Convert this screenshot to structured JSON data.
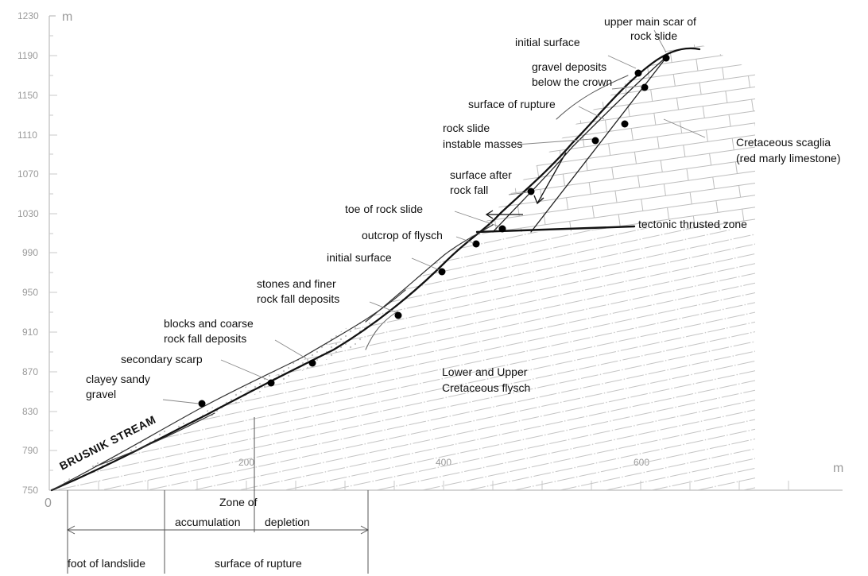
{
  "axes": {
    "y_unit": "m",
    "x_unit": "m",
    "y_ticks": [
      "1230",
      "1190",
      "1150",
      "1110",
      "1070",
      "1030",
      "990",
      "950",
      "910",
      "870",
      "830",
      "790",
      "750"
    ],
    "x_ticks": [
      "0",
      "200",
      "400",
      "600"
    ]
  },
  "labels": {
    "upper_scar_1": "upper main scar of",
    "upper_scar_2": "rock slide",
    "initial_surface_top": "initial surface",
    "gravel_1": "gravel deposits",
    "gravel_2": "below the crown",
    "rupture": "surface of rupture",
    "instable_1": "rock slide",
    "instable_2": "instable masses",
    "scaglia_1": "Cretaceous scaglia",
    "scaglia_2": "(red marly limestone)",
    "after_fall_1": "surface after",
    "after_fall_2": "rock fall",
    "toe": "toe of rock slide",
    "thrust": "tectonic thrusted zone",
    "outcrop": "outcrop of flysch",
    "initial_surface_mid": "initial surface",
    "stones_1": "stones and finer",
    "stones_2": "rock fall deposits",
    "blocks_1": "blocks and coarse",
    "blocks_2": "rock fall deposits",
    "secondary": "secondary scarp",
    "clayey_1": "clayey sandy",
    "clayey_2": "gravel",
    "flysch_1": "Lower and Upper",
    "flysch_2": "Cretaceous flysch",
    "stream": "BRUSNIK STREAM"
  },
  "zones": {
    "zone_of": "Zone of",
    "accumulation": "accumulation",
    "depletion": "depletion",
    "foot": "foot of landslide",
    "rupture": "surface of rupture"
  }
}
